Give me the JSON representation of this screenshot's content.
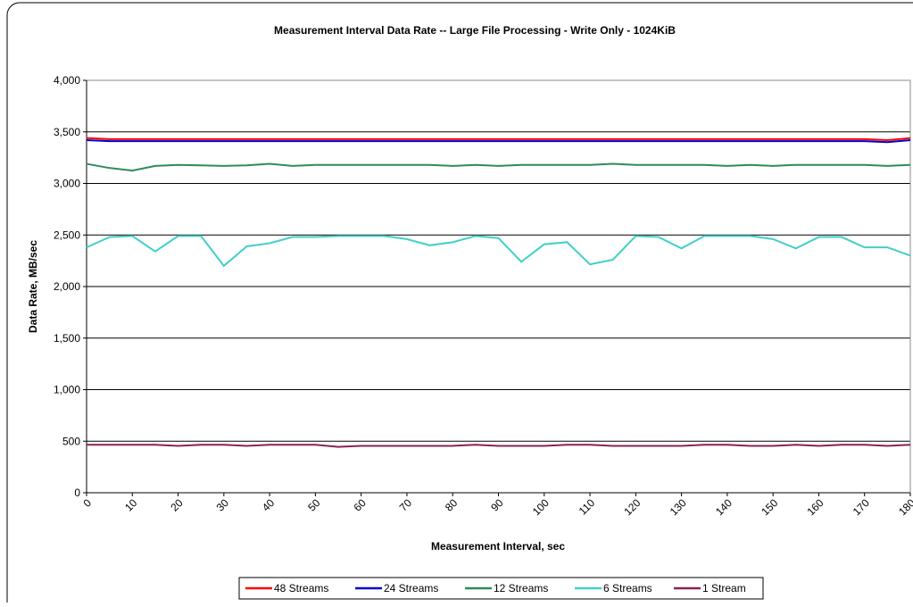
{
  "chart_data": {
    "type": "line",
    "title": "Measurement Interval Data Rate -- Large File Processing - Write Only - 1024KiB",
    "xlabel": "Measurement Interval, sec",
    "ylabel": "Data Rate, MB/sec",
    "x": [
      0,
      5,
      10,
      15,
      20,
      25,
      30,
      35,
      40,
      45,
      50,
      55,
      60,
      65,
      70,
      75,
      80,
      85,
      90,
      95,
      100,
      105,
      110,
      115,
      120,
      125,
      130,
      135,
      140,
      145,
      150,
      155,
      160,
      165,
      170,
      175,
      180
    ],
    "series": [
      {
        "name": "48 Streams",
        "color": "#ff0000",
        "values": [
          3440,
          3430,
          3430,
          3430,
          3430,
          3430,
          3430,
          3430,
          3430,
          3430,
          3430,
          3430,
          3430,
          3430,
          3430,
          3430,
          3430,
          3430,
          3430,
          3430,
          3430,
          3430,
          3430,
          3430,
          3430,
          3430,
          3430,
          3430,
          3430,
          3430,
          3430,
          3430,
          3430,
          3430,
          3430,
          3420,
          3440
        ]
      },
      {
        "name": "24 Streams",
        "color": "#0000cc",
        "values": [
          3420,
          3410,
          3410,
          3410,
          3410,
          3410,
          3410,
          3410,
          3410,
          3410,
          3410,
          3410,
          3410,
          3410,
          3410,
          3410,
          3410,
          3410,
          3410,
          3410,
          3410,
          3410,
          3410,
          3410,
          3410,
          3410,
          3410,
          3410,
          3410,
          3410,
          3410,
          3410,
          3410,
          3410,
          3410,
          3400,
          3420
        ]
      },
      {
        "name": "12 Streams",
        "color": "#2e8b57",
        "values": [
          3190,
          3150,
          3125,
          3170,
          3180,
          3175,
          3170,
          3175,
          3190,
          3170,
          3180,
          3180,
          3180,
          3180,
          3180,
          3180,
          3170,
          3180,
          3170,
          3180,
          3180,
          3180,
          3180,
          3190,
          3180,
          3180,
          3180,
          3180,
          3170,
          3180,
          3170,
          3180,
          3180,
          3180,
          3180,
          3170,
          3180
        ]
      },
      {
        "name": "6 Streams",
        "color": "#40d0c8",
        "values": [
          2380,
          2480,
          2490,
          2340,
          2490,
          2490,
          2200,
          2390,
          2420,
          2480,
          2480,
          2490,
          2490,
          2490,
          2460,
          2400,
          2430,
          2490,
          2470,
          2240,
          2410,
          2430,
          2215,
          2260,
          2490,
          2480,
          2370,
          2490,
          2490,
          2490,
          2460,
          2370,
          2480,
          2480,
          2380,
          2380,
          2300
        ]
      },
      {
        "name": "1 Stream",
        "color": "#8b2252",
        "values": [
          465,
          465,
          465,
          465,
          455,
          465,
          465,
          455,
          465,
          465,
          465,
          445,
          455,
          455,
          455,
          455,
          455,
          465,
          455,
          455,
          455,
          465,
          465,
          455,
          455,
          455,
          455,
          465,
          465,
          455,
          455,
          465,
          455,
          465,
          465,
          455,
          465
        ]
      }
    ],
    "xlim": [
      0,
      180
    ],
    "xticks": [
      0,
      10,
      20,
      30,
      40,
      50,
      60,
      70,
      80,
      90,
      100,
      110,
      120,
      130,
      140,
      150,
      160,
      170,
      180
    ],
    "ylim": [
      0,
      4000
    ],
    "yticks": [
      0,
      500,
      {
        "value": 1000,
        "label": "1,000"
      },
      {
        "value": 1500,
        "label": "1,500"
      },
      {
        "value": 2000,
        "label": "2,000"
      },
      {
        "value": 2500,
        "label": "2,500"
      },
      {
        "value": 3000,
        "label": "3,000"
      },
      {
        "value": 3500,
        "label": "3,500"
      },
      {
        "value": 4000,
        "label": "4,000"
      }
    ],
    "grid": true,
    "legend": "bottom"
  }
}
